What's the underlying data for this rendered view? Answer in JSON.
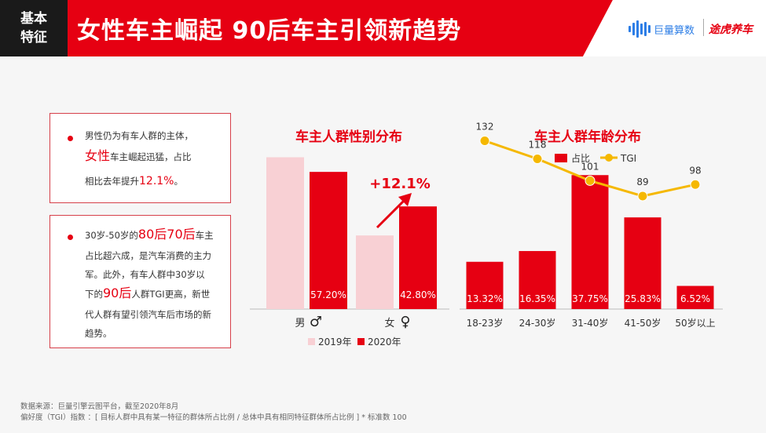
{
  "header": {
    "tag_line1": "基本",
    "tag_line2": "特征",
    "title": "女性车主崛起 90后车主引领新趋势",
    "logo_juliang": "巨量算数",
    "logo_tuhu": "途虎养车",
    "colors": {
      "brand_red": "#e60012",
      "tag_bg": "#1a1a1a",
      "juliang_blue": "#2d7ee6"
    }
  },
  "box1": {
    "line1": "男性仍为有车人群的主体，",
    "line2_hl": "女性",
    "line2_rest": "车主崛起迅猛，占比",
    "line3_pre": "相比去年提升",
    "line3_hl": "12.1%",
    "line3_post": "。"
  },
  "box2": {
    "line1_pre": "30岁-50岁的",
    "line1_hl": "80后70后",
    "line1_post": "车主",
    "line2": "占比超六成，是汽车消费的主力",
    "line3": "军。此外，有车人群中30岁以",
    "line4_pre": "下的",
    "line4_hl": "90后",
    "line4_post": "人群TGI更高，新世",
    "line5": "代人群有望引领汽车后市场的新",
    "line6": "趋势。"
  },
  "chart_data": [
    {
      "type": "bar",
      "title": "车主人群性别分布",
      "categories": [
        "男",
        "女"
      ],
      "category_symbols": [
        "♂",
        "♀"
      ],
      "series": [
        {
          "name": "2019年",
          "values": [
            63.3,
            30.7
          ],
          "color": "#f8d0d4"
        },
        {
          "name": "2020年",
          "values": [
            57.2,
            42.8
          ],
          "color": "#e60012",
          "labels": [
            "57.20%",
            "42.80%"
          ]
        }
      ],
      "ylim": [
        0,
        70
      ],
      "annotation": "+12.1%",
      "legend": "bottom"
    },
    {
      "type": "bar",
      "title": "车主人群年龄分布",
      "categories": [
        "18-23岁",
        "24-30岁",
        "31-40岁",
        "41-50岁",
        "50岁以上"
      ],
      "series": [
        {
          "name": "占比",
          "values": [
            13.32,
            16.35,
            37.75,
            25.83,
            6.52
          ],
          "color": "#e60012",
          "labels": [
            "13.32%",
            "16.35%",
            "37.75%",
            "25.83%",
            "6.52%"
          ]
        },
        {
          "name": "TGI",
          "type": "line",
          "values": [
            132,
            118,
            101,
            89,
            98
          ],
          "color": "#f5b800",
          "labels": [
            "132",
            "118",
            "101",
            "89",
            "98"
          ]
        }
      ],
      "ylim": [
        0,
        42
      ],
      "tgi_ylim": [
        0,
        150
      ],
      "legend": "top-left"
    }
  ],
  "footer": {
    "source": "数据来源：巨量引擎云图平台，截至2020年8月",
    "tgi_note": "偏好度（TGI）指数 ：[ 目标人群中具有某一特征的群体所占比例  /  总体中具有相同特征群体所占比例 ] * 标准数 100"
  }
}
